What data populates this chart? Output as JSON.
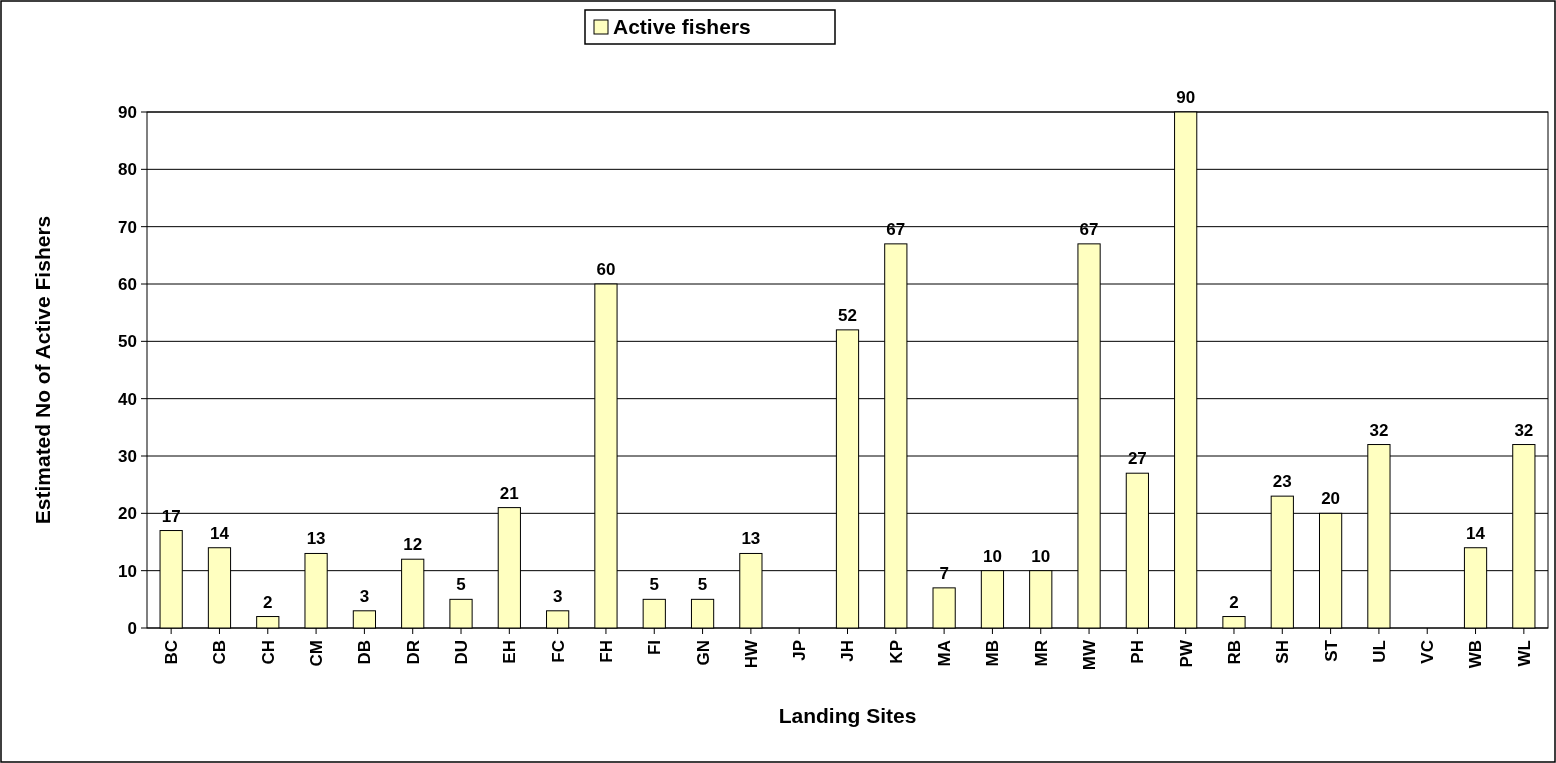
{
  "chart_data": {
    "type": "bar",
    "xlabel": "Landing Sites",
    "ylabel": "Estimated No of Active Fishers",
    "categories": [
      "BC",
      "CB",
      "CH",
      "CM",
      "DB",
      "DR",
      "DU",
      "EH",
      "FC",
      "FH",
      "FI",
      "GN",
      "HW",
      "JP",
      "JH",
      "KP",
      "MA",
      "MB",
      "MR",
      "MW",
      "PH",
      "PW",
      "RB",
      "SH",
      "ST",
      "UL",
      "VC",
      "WB",
      "WL"
    ],
    "series": [
      {
        "name": "Active fishers",
        "color": "#ffffc0",
        "values": [
          17,
          14,
          2,
          13,
          3,
          12,
          5,
          21,
          3,
          60,
          5,
          5,
          13,
          null,
          52,
          67,
          7,
          10,
          10,
          67,
          27,
          90,
          2,
          23,
          20,
          32,
          null,
          14,
          32
        ]
      }
    ],
    "ylim": [
      0,
      90
    ],
    "yticks": [
      0,
      10,
      20,
      30,
      40,
      50,
      60,
      70,
      80,
      90
    ],
    "grid": "y",
    "legend": "top",
    "data_labels": true
  }
}
